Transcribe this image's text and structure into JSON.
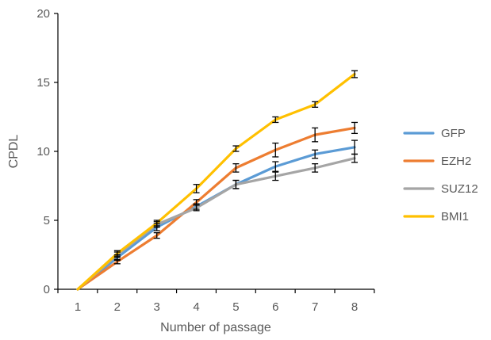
{
  "chart_data": {
    "type": "line",
    "title": "",
    "xlabel": "Number of passage",
    "ylabel": "CPDL",
    "x": [
      1,
      2,
      3,
      4,
      5,
      6,
      7,
      8
    ],
    "ylim": [
      0,
      20
    ],
    "yticks": [
      0,
      5,
      10,
      15,
      20
    ],
    "grid": false,
    "legend_position": "right",
    "series": [
      {
        "name": "GFP",
        "color": "#5B9BD5",
        "values": [
          0,
          2.3,
          4.5,
          6.0,
          7.6,
          8.9,
          9.8,
          10.3
        ],
        "errors": [
          0,
          0.2,
          0.25,
          0.2,
          0.3,
          0.35,
          0.3,
          0.5
        ]
      },
      {
        "name": "EZH2",
        "color": "#ED7D31",
        "values": [
          0,
          2.0,
          3.9,
          6.3,
          8.8,
          10.1,
          11.2,
          11.7
        ],
        "errors": [
          0,
          0.15,
          0.2,
          0.2,
          0.3,
          0.5,
          0.5,
          0.4
        ]
      },
      {
        "name": "SUZ12",
        "color": "#A5A5A5",
        "values": [
          0,
          2.5,
          4.7,
          5.9,
          7.6,
          8.2,
          8.8,
          9.5
        ],
        "errors": [
          0,
          0.2,
          0.2,
          0.2,
          0.3,
          0.3,
          0.3,
          0.3
        ]
      },
      {
        "name": "BMI1",
        "color": "#FFC000",
        "values": [
          0,
          2.6,
          4.8,
          7.3,
          10.2,
          12.3,
          13.4,
          15.6
        ],
        "errors": [
          0,
          0.2,
          0.2,
          0.3,
          0.2,
          0.2,
          0.2,
          0.25
        ]
      }
    ]
  }
}
